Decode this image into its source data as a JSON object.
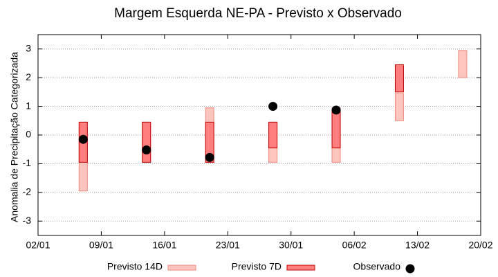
{
  "chart_data": {
    "type": "range-bar",
    "title": "Margem Esquerda NE-PA - Previsto x Observado",
    "y_label": "Anomalia de Precipitação Categorizada",
    "x": [
      "07/01",
      "14/01",
      "21/01",
      "28/01",
      "04/02",
      "11/02",
      "18/02"
    ],
    "xlim": [
      "02/01",
      "20/02"
    ],
    "xticks": [
      "02/01",
      "09/01",
      "16/01",
      "23/01",
      "30/01",
      "06/02",
      "13/02",
      "20/02"
    ],
    "ylim": [
      -3.5,
      3.5
    ],
    "yticks": [
      -3,
      -2,
      -1,
      0,
      1,
      2,
      3
    ],
    "grid": true,
    "legend": "bottom",
    "series": [
      {
        "name": "Previsto 14D",
        "kind": "range",
        "color": "#fcc5bd",
        "edge": "#f08a80",
        "low": [
          -1.95,
          -0.95,
          -0.95,
          -0.95,
          -0.95,
          0.5,
          2.0
        ],
        "high": [
          0.45,
          0.45,
          0.95,
          0.45,
          0.95,
          1.45,
          2.95
        ]
      },
      {
        "name": "Previsto 7D",
        "kind": "range",
        "color": "#ff7f7f",
        "edge": "#c00000",
        "low": [
          -0.95,
          -0.95,
          -0.95,
          -0.45,
          -0.45,
          1.5,
          null
        ],
        "high": [
          0.45,
          0.45,
          0.45,
          0.45,
          0.9,
          2.45,
          null
        ]
      },
      {
        "name": "Observado",
        "kind": "point",
        "color": "#000000",
        "values": [
          -0.15,
          -0.52,
          -0.78,
          1.0,
          0.87,
          null,
          null
        ]
      }
    ]
  }
}
